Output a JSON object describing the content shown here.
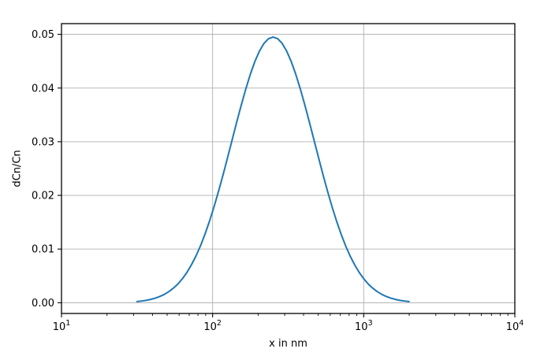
{
  "figure": {
    "background": "#ffffff",
    "title": ""
  },
  "chart_data": {
    "type": "line",
    "title": "",
    "xlabel": "x in nm",
    "ylabel": "dCn/Cn",
    "xscale": "log",
    "yscale": "linear",
    "xlim": [
      10,
      10000
    ],
    "ylim": [
      -0.002,
      0.052
    ],
    "grid": {
      "show": true,
      "color": "#b0b0b0"
    },
    "legend": null,
    "frame": {
      "spine_color": "#000000"
    },
    "xticks": {
      "values": [
        10,
        100,
        1000,
        10000
      ],
      "labels": [
        {
          "base": "10",
          "exp": "1"
        },
        {
          "base": "10",
          "exp": "2"
        },
        {
          "base": "10",
          "exp": "3"
        },
        {
          "base": "10",
          "exp": "4"
        }
      ]
    },
    "yticks": {
      "values": [
        0.0,
        0.01,
        0.02,
        0.03,
        0.04,
        0.05
      ],
      "labels": [
        "0.00",
        "0.01",
        "0.02",
        "0.03",
        "0.04",
        "0.05"
      ]
    },
    "series": [
      {
        "name": "dCn/Cn",
        "color": "#1f77b4",
        "line_width": 2,
        "peak": {
          "x": 251,
          "y": 0.0495
        },
        "x": [
          31.6,
          33.9,
          36.3,
          38.9,
          41.7,
          44.7,
          47.9,
          51.3,
          54.9,
          58.9,
          63.1,
          67.6,
          72.4,
          77.6,
          83.2,
          89.1,
          95.5,
          102.3,
          109.6,
          117.5,
          125.9,
          134.9,
          144.5,
          154.9,
          166.0,
          177.8,
          190.5,
          204.2,
          218.8,
          234.4,
          251.2,
          269.2,
          288.4,
          309.0,
          331.1,
          354.8,
          380.2,
          407.4,
          436.5,
          467.7,
          501.2,
          537.0,
          575.4,
          616.6,
          660.7,
          708.0,
          758.6,
          812.8,
          871.0,
          933.3,
          1000.0,
          1071.5,
          1148.2,
          1230.3,
          1318.3,
          1412.5,
          1513.6,
          1621.8,
          1737.8,
          1862.1,
          1995.3
        ],
        "y": [
          0.00022,
          0.00032,
          0.00044,
          0.00062,
          0.00085,
          0.00116,
          0.00155,
          0.00206,
          0.0027,
          0.00349,
          0.00447,
          0.00565,
          0.00706,
          0.00871,
          0.01062,
          0.0128,
          0.01524,
          0.01792,
          0.02083,
          0.02392,
          0.02714,
          0.03042,
          0.03369,
          0.03687,
          0.03987,
          0.04259,
          0.04496,
          0.04689,
          0.04833,
          0.0492,
          0.0495,
          0.0492,
          0.04833,
          0.04689,
          0.04496,
          0.04259,
          0.03987,
          0.03687,
          0.03369,
          0.03042,
          0.02714,
          0.02392,
          0.02083,
          0.01792,
          0.01524,
          0.0128,
          0.01062,
          0.00871,
          0.00706,
          0.00565,
          0.00447,
          0.00349,
          0.0027,
          0.00206,
          0.00155,
          0.00116,
          0.00085,
          0.00062,
          0.00044,
          0.00032,
          0.00022
        ]
      }
    ]
  }
}
